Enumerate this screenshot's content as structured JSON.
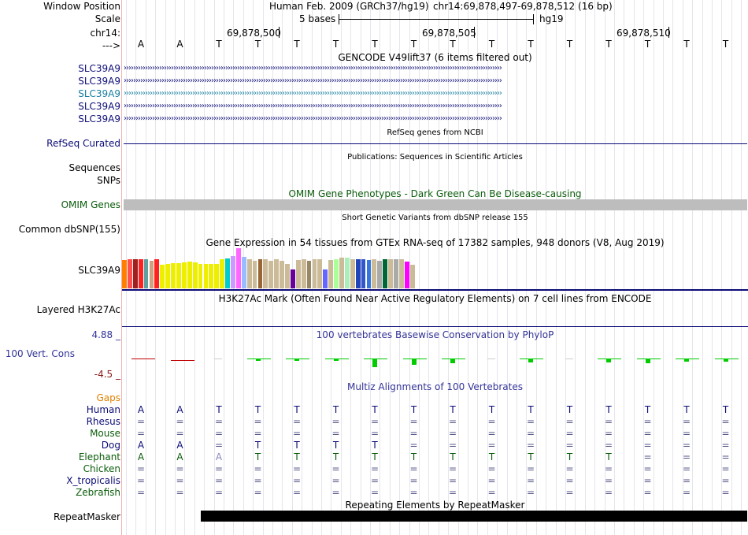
{
  "header": {
    "window_position_label": "Window Position",
    "assembly": "Human Feb. 2009 (GRCh37/hg19)",
    "position": "chr14:69,878,497-69,878,512 (16 bp)",
    "scale_label": "Scale",
    "scale_text": "5 bases",
    "scale_db": "hg19",
    "chrom_label": "chr14:",
    "coord_ticks": [
      "69,878,500",
      "69,878,505",
      "69,878,510"
    ],
    "strand_label": "--->"
  },
  "sequence": [
    "A",
    "A",
    "T",
    "T",
    "T",
    "T",
    "T",
    "T",
    "T",
    "T",
    "T",
    "T",
    "T",
    "T",
    "T",
    "T"
  ],
  "gencode": {
    "title": "GENCODE V49lift37 (6 items filtered out)",
    "genes": [
      "SLC39A9",
      "SLC39A9",
      "SLC39A9",
      "SLC39A9",
      "SLC39A9"
    ],
    "gene_colors": [
      "#0c0c78",
      "#0c0c78",
      "#167fa0",
      "#0c0c78",
      "#0c0c78"
    ],
    "arrow_glyph": "›"
  },
  "refseq": {
    "title": "RefSeq genes from NCBI",
    "label": "RefSeq Curated",
    "color": "#0c0c78"
  },
  "publications": {
    "title": "Publications: Sequences in Scientific Articles",
    "label1": "Sequences",
    "label2": "SNPs"
  },
  "omim": {
    "title": "OMIM Gene Phenotypes - Dark Green Can Be Disease-causing",
    "label": "OMIM Genes",
    "color": "#0a5c0a"
  },
  "dbsnp": {
    "title": "Short Genetic Variants from dbSNP release 155",
    "label": "Common dbSNP(155)"
  },
  "gtex": {
    "title": "Gene Expression in 54 tissues from GTEx RNA-seq of 17382 samples, 948 donors (V8, Aug 2019)",
    "label": "SLC39A9",
    "values": [
      0.7,
      0.72,
      0.72,
      0.72,
      0.72,
      0.68,
      0.72,
      0.58,
      0.6,
      0.62,
      0.62,
      0.64,
      0.66,
      0.64,
      0.6,
      0.6,
      0.6,
      0.6,
      0.72,
      0.74,
      0.8,
      1.0,
      0.78,
      0.72,
      0.68,
      0.72,
      0.72,
      0.68,
      0.72,
      0.68,
      0.6,
      0.48,
      0.7,
      0.72,
      0.68,
      0.72,
      0.72,
      0.48,
      0.7,
      0.72,
      0.76,
      0.76,
      0.72,
      0.72,
      0.72,
      0.7,
      0.72,
      0.68,
      0.72,
      0.72,
      0.72,
      0.72,
      0.66,
      0.58
    ],
    "colors": [
      "#ff8000",
      "#ff5050",
      "#a02020",
      "#ff2020",
      "#60a0a0",
      "#d0a080",
      "#ff2020",
      "#eeee00",
      "#eeee00",
      "#eeee00",
      "#eeee00",
      "#eeee00",
      "#eeee00",
      "#eeee00",
      "#eeee00",
      "#eeee00",
      "#eeee00",
      "#eeee00",
      "#eeee00",
      "#00cccc",
      "#cc99ff",
      "#ff66ff",
      "#99bbff",
      "#ccbb99",
      "#ccbb99",
      "#996633",
      "#ccbb99",
      "#ccbb99",
      "#ccbb99",
      "#ccbb99",
      "#ccbb99",
      "#660099",
      "#ccbb99",
      "#ccbb99",
      "#998866",
      "#ccbb99",
      "#ccbb99",
      "#6666ff",
      "#ccbb99",
      "#aaff99",
      "#ccbb99",
      "#aaeebb",
      "#ccbb99",
      "#2244bb",
      "#3355cc",
      "#3377dd",
      "#ccbb99",
      "#aaaaaa",
      "#006633",
      "#ccbb99",
      "#aaaaaa",
      "#ccbb99",
      "#ff00ff",
      "#ccbb99"
    ]
  },
  "h3k27ac": {
    "title": "H3K27Ac Mark (Often Found Near Active Regulatory Elements) on 7 cell lines from ENCODE",
    "label": "Layered H3K27Ac"
  },
  "phylop": {
    "title": "100 vertebrates Basewise Conservation by PhyloP",
    "label": "100 Vert. Cons",
    "max": "4.88 _",
    "min": "-4.5 _",
    "scores": [
      -0.6,
      -0.1,
      0,
      0.2,
      0.2,
      0.1,
      1.0,
      0.7,
      0.5,
      0,
      0.4,
      0,
      0.4,
      0.5,
      0.3,
      0.3
    ],
    "pos_color": "#00cc00",
    "neg_color": "#c00000"
  },
  "multiz": {
    "title": "Multiz Alignments of 100 Vertebrates",
    "gaps_label": "Gaps",
    "species": [
      {
        "name": "Human",
        "color": "#0c0c78",
        "bases": [
          "A",
          "A",
          "T",
          "T",
          "T",
          "T",
          "T",
          "T",
          "T",
          "T",
          "T",
          "T",
          "T",
          "T",
          "T",
          "T"
        ]
      },
      {
        "name": "Rhesus",
        "color": "#0c0c78",
        "bases": [
          "=",
          "=",
          "=",
          "=",
          "=",
          "=",
          "=",
          "=",
          "=",
          "=",
          "=",
          "=",
          "=",
          "=",
          "=",
          "="
        ]
      },
      {
        "name": "Mouse",
        "color": "#0a5c0a",
        "bases": [
          "=",
          "=",
          "=",
          "=",
          "=",
          "=",
          "=",
          "=",
          "=",
          "=",
          "=",
          "=",
          "=",
          "=",
          "=",
          "="
        ]
      },
      {
        "name": "Dog",
        "color": "#0c0c78",
        "bases": [
          "A",
          "A",
          "=",
          "T",
          "T",
          "T",
          "T",
          "=",
          "=",
          "=",
          "=",
          "=",
          "=",
          "=",
          "=",
          "="
        ]
      },
      {
        "name": "Elephant",
        "color": "#0a5c0a",
        "bases": [
          "A",
          "A",
          "A",
          "T",
          "T",
          "T",
          "T",
          "T",
          "T",
          "T",
          "T",
          "T",
          "T",
          "=",
          "=",
          "="
        ]
      },
      {
        "name": "Chicken",
        "color": "#0a5c0a",
        "bases": [
          "=",
          "=",
          "=",
          "=",
          "=",
          "=",
          "=",
          "=",
          "=",
          "=",
          "=",
          "=",
          "=",
          "=",
          "=",
          "="
        ]
      },
      {
        "name": "X_tropicalis",
        "color": "#0c0c78",
        "bases": [
          "=",
          "=",
          "=",
          "=",
          "=",
          "=",
          "=",
          "=",
          "=",
          "=",
          "=",
          "=",
          "=",
          "=",
          "=",
          "="
        ]
      },
      {
        "name": "Zebrafish",
        "color": "#0a5c0a",
        "bases": [
          "=",
          "=",
          "=",
          "=",
          "=",
          "=",
          "=",
          "=",
          "=",
          "=",
          "=",
          "=",
          "=",
          "=",
          "=",
          "="
        ]
      }
    ],
    "gaps_color": "#e08000"
  },
  "repeatmasker": {
    "title": "Repeating Elements by RepeatMasker",
    "label": "RepeatMasker"
  }
}
